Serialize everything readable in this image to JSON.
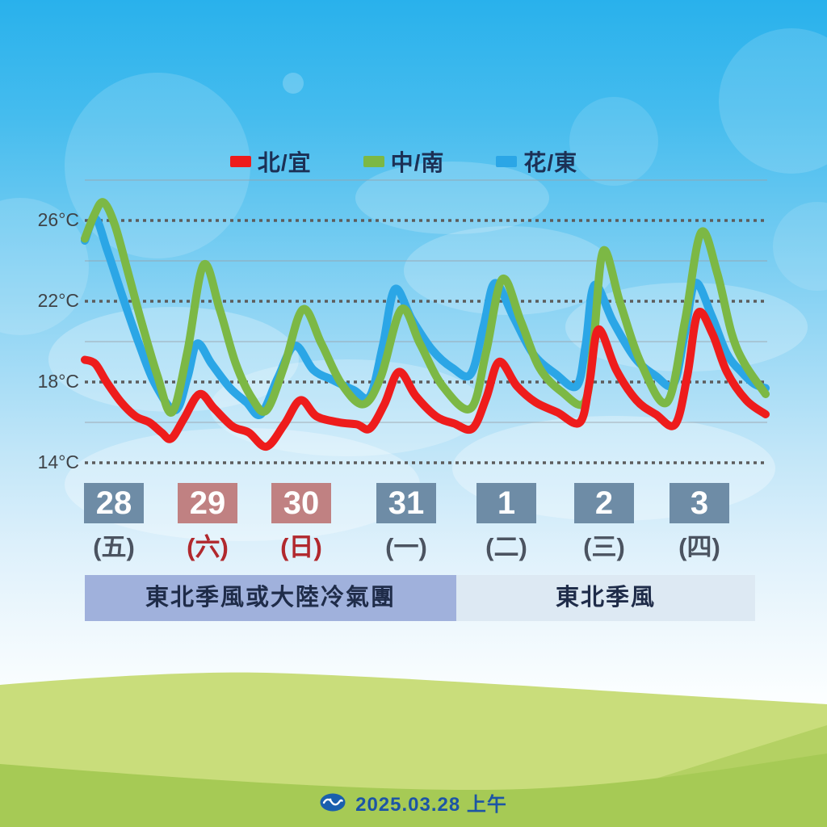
{
  "legend": [
    {
      "label": "北/宜",
      "color": "#ee1c1c"
    },
    {
      "label": "中/南",
      "color": "#7cb845"
    },
    {
      "label": "花/東",
      "color": "#2ba6e6"
    }
  ],
  "y_axis": {
    "tick_labels": [
      "26°C",
      "22°C",
      "18°C",
      "14°C"
    ],
    "tick_values": [
      26,
      22,
      18,
      14
    ]
  },
  "dates": [
    {
      "day": "28",
      "weekday": "(五)",
      "weekend": false
    },
    {
      "day": "29",
      "weekday": "(六)",
      "weekend": true
    },
    {
      "day": "30",
      "weekday": "(日)",
      "weekend": true
    },
    {
      "day": "31",
      "weekday": "(一)",
      "weekend": false
    },
    {
      "day": "1",
      "weekday": "(二)",
      "weekend": false
    },
    {
      "day": "2",
      "weekday": "(三)",
      "weekend": false
    },
    {
      "day": "3",
      "weekday": "(四)",
      "weekend": false
    }
  ],
  "date_colors": {
    "weekday_box": "#6e8ca6",
    "weekend_box": "#c08182",
    "weekday_text": "#4b5360",
    "weekend_text": "#b1282d",
    "number_text": "#ffffff"
  },
  "banners": [
    {
      "label": "東北季風或大陸冷氣團",
      "bg": "#a0b1dc"
    },
    {
      "label": "東北季風",
      "bg": "#dde9f3"
    }
  ],
  "footer": {
    "date": "2025.03.28 上午",
    "logo": "cwa-logo",
    "logo_color": "#1a5fae"
  },
  "chart_data": {
    "type": "line",
    "unit": "°C",
    "title": "",
    "y_ticks_major_dotted": [
      26,
      22,
      18,
      14
    ],
    "y_ticks_minor_solid": [
      28,
      24,
      20,
      16
    ],
    "ylim": [
      13.5,
      28
    ],
    "x_days": [
      "28(五)",
      "29(六)",
      "30(日)",
      "31(一)",
      "1(二)",
      "2(三)",
      "3(四)"
    ],
    "gridline_colors": {
      "major_dotted": "#5c5c5c",
      "minor_solid": "#9aa0a6"
    },
    "series": [
      {
        "name": "花/東",
        "color": "#2ba6e6",
        "points": [
          [
            105,
            25.0
          ],
          [
            118,
            26.1
          ],
          [
            133,
            24.5
          ],
          [
            152,
            22.2
          ],
          [
            172,
            19.9
          ],
          [
            192,
            17.9
          ],
          [
            217,
            16.6
          ],
          [
            232,
            18.2
          ],
          [
            244,
            19.9
          ],
          [
            262,
            18.9
          ],
          [
            285,
            17.7
          ],
          [
            305,
            17.0
          ],
          [
            323,
            16.4
          ],
          [
            344,
            18.2
          ],
          [
            365,
            19.8
          ],
          [
            388,
            18.6
          ],
          [
            412,
            18.1
          ],
          [
            438,
            17.6
          ],
          [
            458,
            17.3
          ],
          [
            474,
            19.8
          ],
          [
            489,
            22.6
          ],
          [
            510,
            21.1
          ],
          [
            535,
            19.6
          ],
          [
            560,
            18.7
          ],
          [
            583,
            18.4
          ],
          [
            599,
            20.8
          ],
          [
            613,
            22.9
          ],
          [
            636,
            21.2
          ],
          [
            660,
            19.4
          ],
          [
            688,
            18.4
          ],
          [
            714,
            17.8
          ],
          [
            725,
            19.8
          ],
          [
            736,
            22.8
          ],
          [
            759,
            21.0
          ],
          [
            786,
            19.2
          ],
          [
            812,
            18.3
          ],
          [
            834,
            17.9
          ],
          [
            848,
            20.4
          ],
          [
            861,
            22.9
          ],
          [
            881,
            21.3
          ],
          [
            900,
            19.4
          ],
          [
            918,
            18.5
          ],
          [
            934,
            17.9
          ],
          [
            948,
            17.7
          ]
        ]
      },
      {
        "name": "中/南",
        "color": "#7cb845",
        "points": [
          [
            105,
            25.1
          ],
          [
            117,
            26.3
          ],
          [
            128,
            26.9
          ],
          [
            142,
            25.8
          ],
          [
            158,
            23.5
          ],
          [
            175,
            21.0
          ],
          [
            195,
            18.3
          ],
          [
            213,
            16.5
          ],
          [
            232,
            19.5
          ],
          [
            252,
            23.8
          ],
          [
            272,
            21.6
          ],
          [
            292,
            18.9
          ],
          [
            312,
            17.2
          ],
          [
            330,
            16.6
          ],
          [
            352,
            18.8
          ],
          [
            375,
            21.6
          ],
          [
            398,
            19.9
          ],
          [
            423,
            17.9
          ],
          [
            450,
            16.9
          ],
          [
            472,
            18.3
          ],
          [
            497,
            21.6
          ],
          [
            520,
            19.9
          ],
          [
            548,
            17.8
          ],
          [
            583,
            16.7
          ],
          [
            602,
            19.5
          ],
          [
            622,
            23.1
          ],
          [
            645,
            21.0
          ],
          [
            668,
            18.7
          ],
          [
            696,
            17.5
          ],
          [
            724,
            17.0
          ],
          [
            735,
            20.0
          ],
          [
            747,
            24.5
          ],
          [
            768,
            21.9
          ],
          [
            794,
            18.9
          ],
          [
            826,
            17.0
          ],
          [
            848,
            21.0
          ],
          [
            868,
            25.4
          ],
          [
            888,
            23.4
          ],
          [
            906,
            20.4
          ],
          [
            922,
            18.9
          ],
          [
            948,
            17.4
          ]
        ]
      },
      {
        "name": "北/宜",
        "color": "#ee1c1c",
        "points": [
          [
            105,
            19.1
          ],
          [
            118,
            18.9
          ],
          [
            132,
            18.0
          ],
          [
            150,
            17.0
          ],
          [
            168,
            16.3
          ],
          [
            185,
            16.0
          ],
          [
            200,
            15.5
          ],
          [
            212,
            15.2
          ],
          [
            228,
            16.2
          ],
          [
            247,
            17.4
          ],
          [
            265,
            16.7
          ],
          [
            288,
            15.8
          ],
          [
            308,
            15.5
          ],
          [
            330,
            14.8
          ],
          [
            352,
            15.9
          ],
          [
            372,
            17.1
          ],
          [
            392,
            16.3
          ],
          [
            420,
            16.0
          ],
          [
            442,
            15.9
          ],
          [
            458,
            15.7
          ],
          [
            476,
            16.9
          ],
          [
            494,
            18.5
          ],
          [
            515,
            17.3
          ],
          [
            540,
            16.3
          ],
          [
            562,
            15.95
          ],
          [
            585,
            15.7
          ],
          [
            602,
            17.2
          ],
          [
            618,
            19.0
          ],
          [
            640,
            17.8
          ],
          [
            663,
            17.0
          ],
          [
            690,
            16.5
          ],
          [
            718,
            16.0
          ],
          [
            730,
            18.0
          ],
          [
            741,
            20.6
          ],
          [
            763,
            18.6
          ],
          [
            788,
            17.1
          ],
          [
            812,
            16.4
          ],
          [
            836,
            15.9
          ],
          [
            851,
            18.3
          ],
          [
            864,
            21.4
          ],
          [
            882,
            20.4
          ],
          [
            900,
            18.5
          ],
          [
            924,
            17.1
          ],
          [
            948,
            16.4
          ]
        ]
      }
    ]
  }
}
